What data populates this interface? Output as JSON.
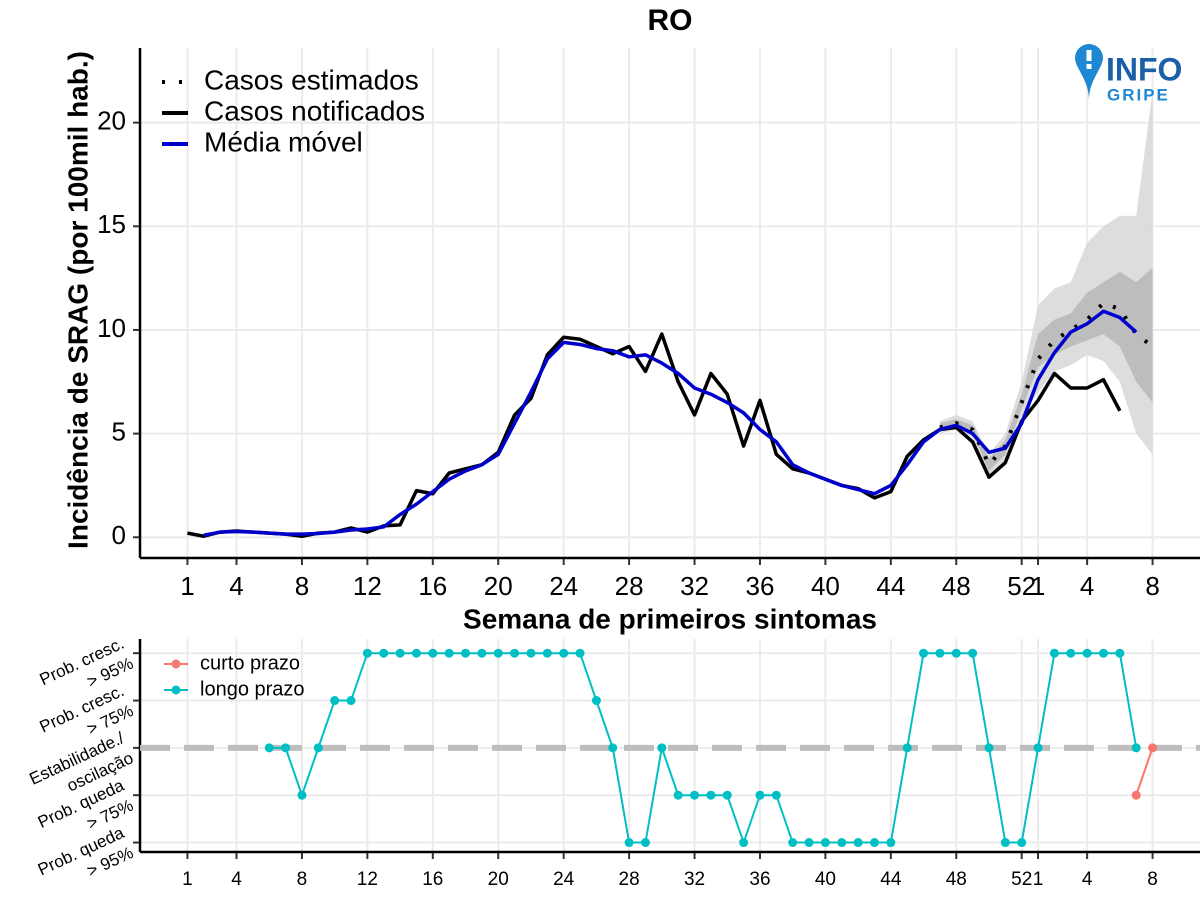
{
  "logo": {
    "line1": "INFO",
    "line2": "GRIPE"
  },
  "chart_data": [
    {
      "type": "line",
      "title": "RO",
      "x_label": "Semana de primeiros sintomas",
      "y_label": "Incidência de SRAG (por 100mil hab.)",
      "x": [
        1,
        2,
        3,
        4,
        5,
        6,
        7,
        8,
        9,
        10,
        11,
        12,
        13,
        14,
        15,
        16,
        17,
        18,
        19,
        20,
        21,
        22,
        23,
        24,
        25,
        26,
        27,
        28,
        29,
        30,
        31,
        32,
        33,
        34,
        35,
        36,
        37,
        38,
        39,
        40,
        41,
        42,
        43,
        44,
        45,
        46,
        47,
        48,
        49,
        50,
        51,
        52,
        53,
        54,
        55,
        56,
        57,
        58,
        59,
        60
      ],
      "xlim": [
        -1.9,
        62.9
      ],
      "xticks": [
        1,
        4,
        8,
        12,
        16,
        20,
        24,
        28,
        32,
        36,
        40,
        44,
        48,
        52,
        {
          "value": 53,
          "label": "1"
        },
        {
          "value": 56,
          "label": "4"
        },
        {
          "value": 60,
          "label": "8"
        }
      ],
      "ylim": [
        -1,
        23.6
      ],
      "yticks": [
        0,
        5,
        10,
        15,
        20
      ],
      "grid": true,
      "legend": "top-left",
      "series": [
        {
          "name": "Casos estimados",
          "color": "#000000",
          "style": "dotted",
          "values": [
            null,
            null,
            null,
            null,
            null,
            null,
            null,
            null,
            null,
            null,
            null,
            null,
            null,
            null,
            null,
            null,
            null,
            null,
            null,
            null,
            null,
            null,
            null,
            null,
            null,
            null,
            null,
            null,
            null,
            null,
            null,
            null,
            null,
            null,
            null,
            null,
            null,
            null,
            null,
            null,
            null,
            null,
            null,
            null,
            null,
            null,
            5.3,
            5.5,
            5.2,
            3.5,
            4.4,
            6.5,
            8.6,
            9.5,
            10.0,
            10.5,
            11.3,
            11.0,
            9.8,
            9.2
          ]
        },
        {
          "name": "Casos notificados",
          "color": "#000000",
          "style": "solid",
          "values": [
            0.2,
            0.05,
            0.25,
            0.3,
            0.25,
            0.2,
            0.15,
            0.05,
            0.2,
            0.25,
            0.45,
            0.25,
            0.55,
            0.6,
            2.25,
            2.1,
            3.1,
            3.3,
            3.5,
            4.1,
            5.9,
            6.7,
            8.8,
            9.65,
            9.55,
            9.2,
            8.85,
            9.2,
            8.0,
            9.8,
            7.5,
            5.9,
            7.9,
            6.9,
            4.4,
            6.6,
            4.0,
            3.3,
            3.1,
            2.8,
            2.5,
            2.35,
            1.9,
            2.2,
            3.9,
            4.7,
            5.2,
            5.3,
            4.6,
            2.9,
            3.6,
            5.6,
            6.6,
            7.9,
            7.2,
            7.2,
            7.6,
            6.1,
            null,
            null
          ]
        },
        {
          "name": "Média móvel",
          "color": "#0000cc",
          "style": "solid",
          "values": [
            null,
            0.1,
            0.25,
            0.28,
            0.25,
            0.2,
            0.15,
            0.15,
            0.18,
            0.25,
            0.35,
            0.4,
            0.5,
            1.1,
            1.6,
            2.2,
            2.8,
            3.2,
            3.5,
            4.0,
            5.5,
            7.0,
            8.6,
            9.4,
            9.3,
            9.1,
            9.0,
            8.7,
            8.8,
            8.4,
            7.9,
            7.2,
            6.9,
            6.5,
            6.0,
            5.2,
            4.6,
            3.5,
            3.1,
            2.8,
            2.5,
            2.3,
            2.1,
            2.5,
            3.5,
            4.6,
            5.2,
            5.4,
            5.0,
            4.1,
            4.3,
            5.5,
            7.6,
            8.9,
            9.9,
            10.3,
            10.9,
            10.6,
            9.9,
            null
          ]
        }
      ],
      "bands": [
        {
          "color": "#d9d9d9",
          "lower": [
            null,
            null,
            null,
            null,
            null,
            null,
            null,
            null,
            null,
            null,
            null,
            null,
            null,
            null,
            null,
            null,
            null,
            null,
            null,
            null,
            null,
            null,
            null,
            null,
            null,
            null,
            null,
            null,
            null,
            null,
            null,
            null,
            null,
            null,
            null,
            null,
            null,
            null,
            null,
            null,
            null,
            null,
            null,
            null,
            null,
            null,
            5.0,
            5.2,
            4.8,
            3.0,
            3.7,
            5.8,
            7.0,
            8.0,
            8.3,
            8.8,
            8.5,
            7.5,
            5.0,
            4.0
          ],
          "upper": [
            null,
            null,
            null,
            null,
            null,
            null,
            null,
            null,
            null,
            null,
            null,
            null,
            null,
            null,
            null,
            null,
            null,
            null,
            null,
            null,
            null,
            null,
            null,
            null,
            null,
            null,
            null,
            null,
            null,
            null,
            null,
            null,
            null,
            null,
            null,
            null,
            null,
            null,
            null,
            null,
            null,
            null,
            null,
            null,
            null,
            null,
            5.6,
            5.9,
            5.6,
            4.0,
            5.0,
            7.5,
            11.2,
            12.0,
            12.3,
            14.2,
            15.0,
            15.5,
            15.5,
            21.5
          ]
        },
        {
          "color": "#b9b9b9",
          "lower": [
            null,
            null,
            null,
            null,
            null,
            null,
            null,
            null,
            null,
            null,
            null,
            null,
            null,
            null,
            null,
            null,
            null,
            null,
            null,
            null,
            null,
            null,
            null,
            null,
            null,
            null,
            null,
            null,
            null,
            null,
            null,
            null,
            null,
            null,
            null,
            null,
            null,
            null,
            null,
            null,
            null,
            null,
            null,
            null,
            null,
            null,
            5.1,
            5.3,
            5.0,
            3.2,
            4.0,
            6.2,
            8.2,
            8.8,
            9.2,
            9.5,
            9.8,
            9.2,
            7.5,
            6.5
          ],
          "upper": [
            null,
            null,
            null,
            null,
            null,
            null,
            null,
            null,
            null,
            null,
            null,
            null,
            null,
            null,
            null,
            null,
            null,
            null,
            null,
            null,
            null,
            null,
            null,
            null,
            null,
            null,
            null,
            null,
            null,
            null,
            null,
            null,
            null,
            null,
            null,
            null,
            null,
            null,
            null,
            null,
            null,
            null,
            null,
            null,
            null,
            null,
            5.5,
            5.7,
            5.4,
            3.8,
            4.7,
            6.9,
            9.8,
            10.5,
            10.8,
            11.8,
            12.3,
            12.8,
            12.3,
            13.0
          ]
        }
      ]
    },
    {
      "type": "line_points",
      "x": [
        1,
        2,
        3,
        4,
        5,
        6,
        7,
        8,
        9,
        10,
        11,
        12,
        13,
        14,
        15,
        16,
        17,
        18,
        19,
        20,
        21,
        22,
        23,
        24,
        25,
        26,
        27,
        28,
        29,
        30,
        31,
        32,
        33,
        34,
        35,
        36,
        37,
        38,
        39,
        40,
        41,
        42,
        43,
        44,
        45,
        46,
        47,
        48,
        49,
        50,
        51,
        52,
        53,
        54,
        55,
        56,
        57,
        58,
        59,
        60
      ],
      "xlim": [
        -1.9,
        62.9
      ],
      "xticks": [
        1,
        4,
        8,
        12,
        16,
        20,
        24,
        28,
        32,
        36,
        40,
        44,
        48,
        52,
        {
          "value": 53,
          "label": "1"
        },
        {
          "value": 56,
          "label": "4"
        },
        {
          "value": 60,
          "label": "8"
        }
      ],
      "ylim": [
        -2.2,
        2.3
      ],
      "yticks": [
        {
          "value": 2,
          "label": [
            "Prob. cresc.",
            "> 95%"
          ]
        },
        {
          "value": 1,
          "label": [
            "Prob. cresc.",
            "> 75%"
          ]
        },
        {
          "value": 0,
          "label": [
            "Estabilidade./",
            "oscilação"
          ]
        },
        {
          "value": -1,
          "label": [
            "Prob. queda",
            "> 75%"
          ]
        },
        {
          "value": -2,
          "label": [
            "Prob. queda",
            "> 95%"
          ]
        }
      ],
      "grid": true,
      "legend": "top-left",
      "reference_line": 0,
      "series": [
        {
          "name": "curto prazo",
          "color": "#f8766d",
          "values": [
            null,
            null,
            null,
            null,
            null,
            null,
            null,
            null,
            null,
            null,
            null,
            null,
            null,
            null,
            null,
            null,
            null,
            null,
            null,
            null,
            null,
            null,
            null,
            null,
            null,
            null,
            null,
            null,
            null,
            null,
            null,
            null,
            null,
            null,
            null,
            null,
            null,
            null,
            null,
            null,
            null,
            null,
            null,
            null,
            null,
            null,
            null,
            null,
            null,
            null,
            null,
            null,
            null,
            null,
            null,
            null,
            null,
            null,
            -1,
            0
          ]
        },
        {
          "name": "longo prazo",
          "color": "#00bfc4",
          "values": [
            null,
            null,
            null,
            null,
            null,
            0,
            0,
            -1,
            0,
            1,
            1,
            2,
            2,
            2,
            2,
            2,
            2,
            2,
            2,
            2,
            2,
            2,
            2,
            2,
            2,
            1,
            0,
            -2,
            -2,
            0,
            -1,
            -1,
            -1,
            -1,
            -2,
            -1,
            -1,
            -2,
            -2,
            -2,
            -2,
            -2,
            -2,
            -2,
            0,
            2,
            2,
            2,
            2,
            0,
            -2,
            -2,
            0,
            2,
            2,
            2,
            2,
            2,
            0,
            null
          ]
        }
      ]
    }
  ]
}
